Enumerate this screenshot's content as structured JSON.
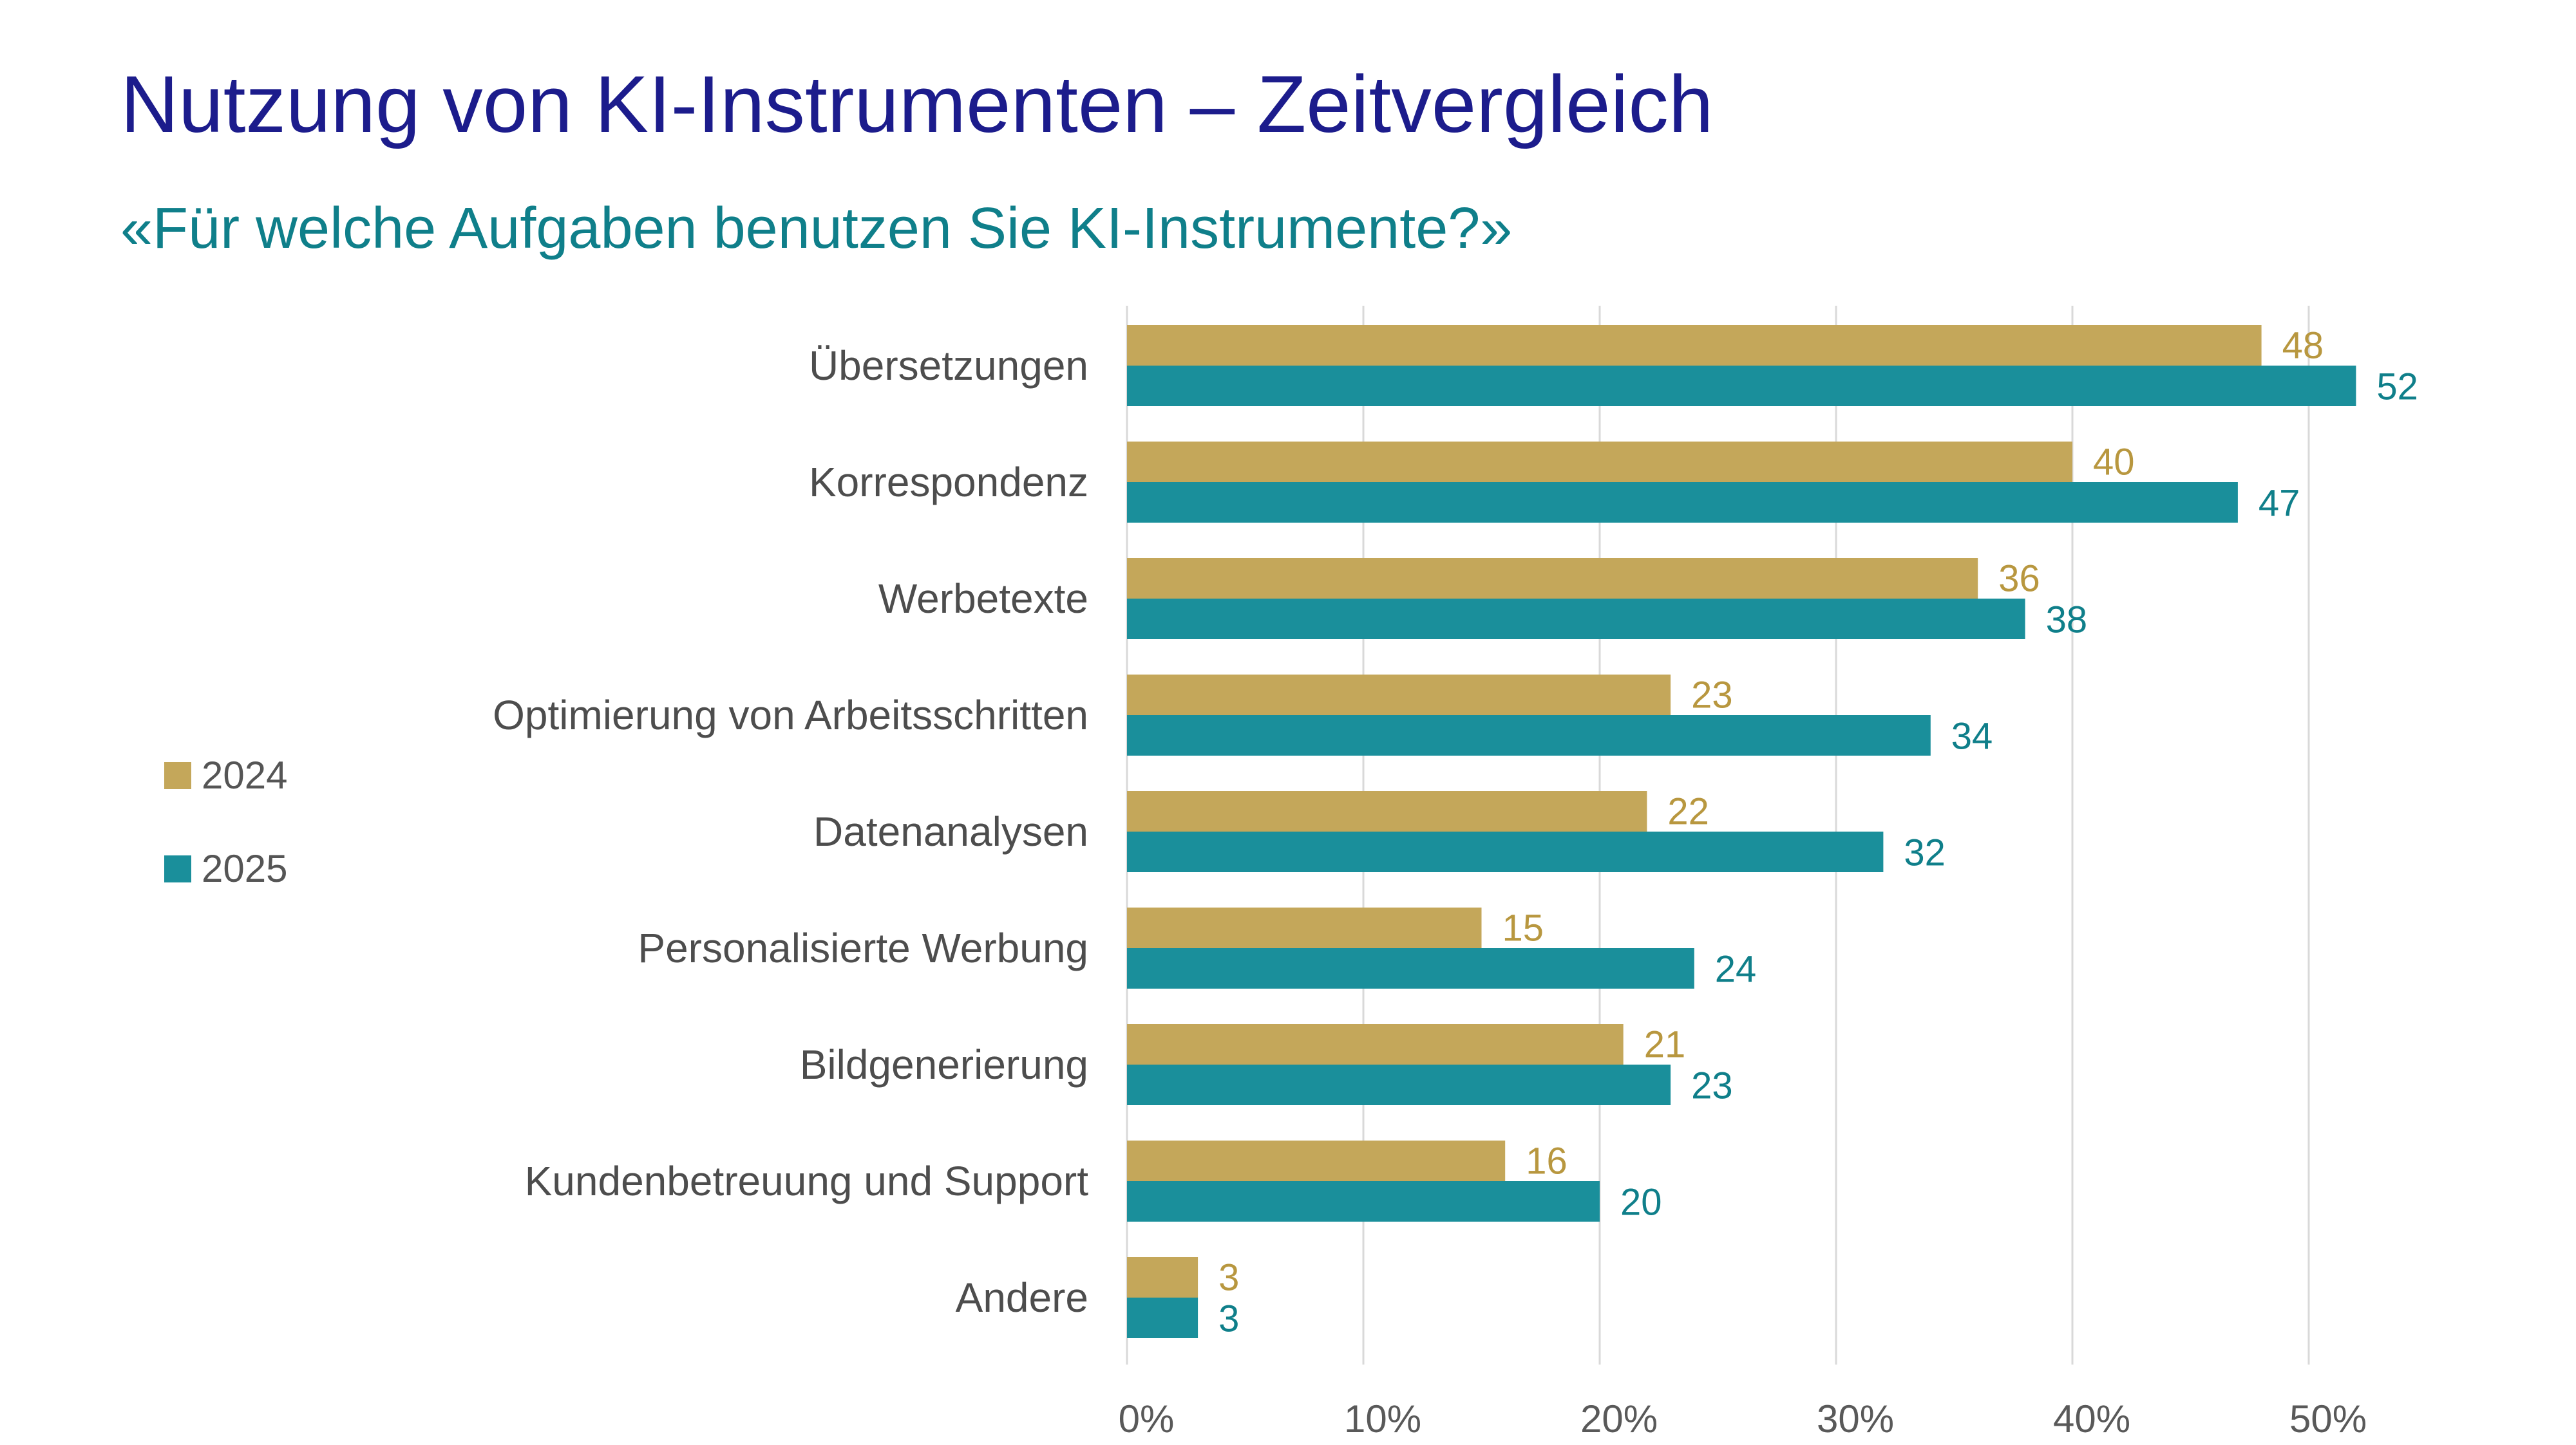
{
  "header": {
    "title": "Nutzung von KI-Instrumenten – Zeitvergleich",
    "subtitle": "«Für welche Aufgaben benutzen Sie KI-Instrumente?»"
  },
  "colors": {
    "title": "#1c1c8c",
    "subtitle": "#0f7f8a",
    "series_2024": "#c4a75a",
    "series_2024_label": "#b8973f",
    "series_2025": "#1a8f9b",
    "series_2025_label": "#0f7f8a",
    "grid": "#d9d9d9",
    "axis_text": "#595959"
  },
  "chart_data": {
    "type": "bar",
    "orientation": "horizontal",
    "title": "Nutzung von KI-Instrumenten – Zeitvergleich",
    "subtitle": "«Für welche Aufgaben benutzen Sie KI-Instrumente?»",
    "categories": [
      "Übersetzungen",
      "Korrespondenz",
      "Werbetexte",
      "Optimierung von Arbeitsschritten",
      "Datenanalysen",
      "Personalisierte Werbung",
      "Bildgenerierung",
      "Kundenbetreuung und Support",
      "Andere"
    ],
    "series": [
      {
        "name": "2024",
        "values": [
          48,
          40,
          36,
          23,
          22,
          15,
          21,
          16,
          3
        ]
      },
      {
        "name": "2025",
        "values": [
          52,
          47,
          38,
          34,
          32,
          24,
          23,
          20,
          3
        ]
      }
    ],
    "xlim": [
      0,
      50
    ],
    "xticks": [
      "0%",
      "10%",
      "20%",
      "30%",
      "40%",
      "50%"
    ],
    "grid": true,
    "legend_position": "left"
  }
}
